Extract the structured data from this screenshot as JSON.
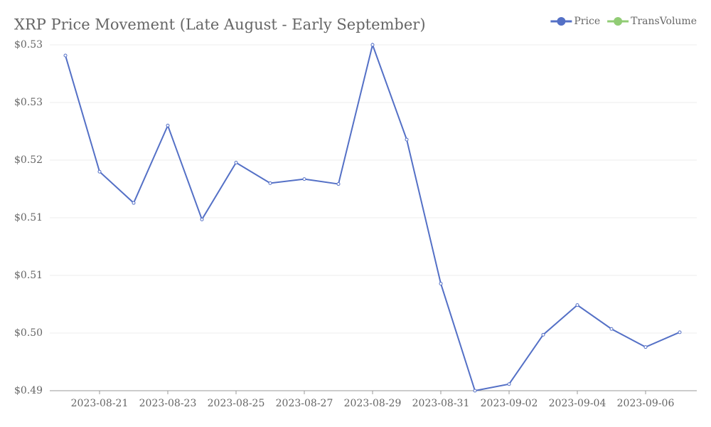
{
  "chart_data": {
    "type": "line",
    "title": "XRP Price Movement (Late August - Early September)",
    "categories": [
      null,
      "2023-08-21",
      null,
      "2023-08-23",
      null,
      "2023-08-25",
      null,
      "2023-08-27",
      null,
      "2023-08-29",
      null,
      "2023-08-31",
      null,
      "2023-09-02",
      null,
      "2023-09-04",
      null,
      "2023-09-06",
      null
    ],
    "series": [
      {
        "name": "Price",
        "color": "#5470c6",
        "values": [
          0.5322,
          0.5181,
          0.5143,
          0.5237,
          0.5123,
          0.5192,
          0.5167,
          0.5172,
          0.5166,
          0.5335,
          0.522,
          0.5045,
          0.4915,
          0.4923,
          0.4983,
          0.5019,
          0.499,
          0.4968,
          0.4986
        ]
      },
      {
        "name": "TransVolume",
        "color": "#91cc75",
        "values": [
          null,
          null,
          null,
          null,
          null,
          null,
          null,
          null,
          null,
          null,
          null,
          null,
          null,
          null,
          null,
          null,
          null,
          null,
          null
        ]
      }
    ],
    "ylim": [
      0.4915,
      0.5335
    ],
    "yticks": [
      {
        "value": 0.4915,
        "label": "$0.49"
      },
      {
        "value": 0.4985,
        "label": "$0.50"
      },
      {
        "value": 0.5055,
        "label": "$0.51"
      },
      {
        "value": 0.5125,
        "label": "$0.51"
      },
      {
        "value": 0.5195,
        "label": "$0.52"
      },
      {
        "value": 0.5265,
        "label": "$0.53"
      },
      {
        "value": 0.5335,
        "label": "$0.53"
      }
    ],
    "grid": true,
    "legend": "top-right"
  }
}
